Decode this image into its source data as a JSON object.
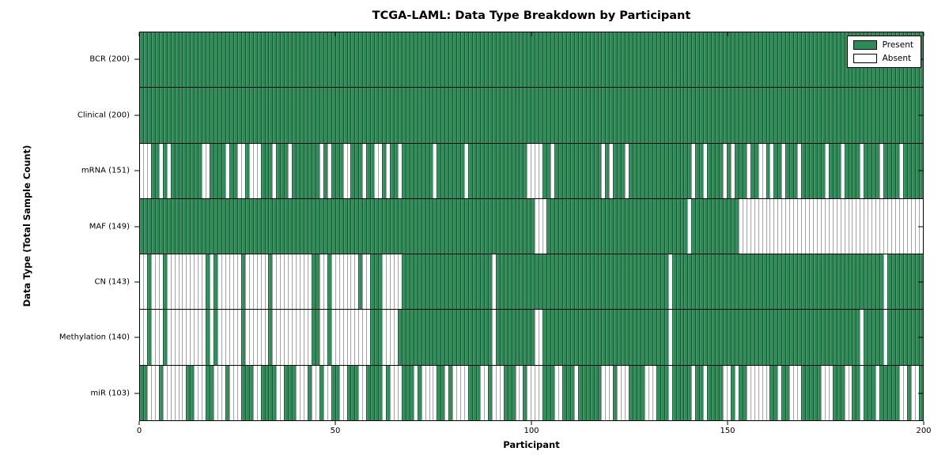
{
  "title": "TCGA-LAML: Data Type Breakdown by Participant",
  "axes": {
    "xlabel": "Participant",
    "ylabel": "Data Type (Total Sample Count)"
  },
  "legend": {
    "position": "upper right",
    "items": [
      {
        "label": "Present",
        "color": "#2e8b57"
      },
      {
        "label": "Absent",
        "color": "#ffffff"
      }
    ]
  },
  "chart_data": {
    "type": "heatmap",
    "title": "TCGA-LAML: Data Type Breakdown by Participant",
    "xlabel": "Participant",
    "ylabel": "Data Type (Total Sample Count)",
    "x_range": [
      0,
      200
    ],
    "x_ticks": [
      0,
      50,
      100,
      150,
      200
    ],
    "n_participants": 200,
    "grid": false,
    "colors": {
      "present": "#2e8b57",
      "absent": "#ffffff"
    },
    "rows": [
      {
        "label": "BCR (200)",
        "data_type": "BCR",
        "present_count": 200,
        "absent_ranges": []
      },
      {
        "label": "Clinical (200)",
        "data_type": "Clinical",
        "present_count": 200,
        "absent_ranges": []
      },
      {
        "label": "mRNA (151)",
        "data_type": "mRNA",
        "present_count": 151,
        "absent_ranges": [
          [
            0,
            2
          ],
          [
            5,
            5
          ],
          [
            7,
            7
          ],
          [
            16,
            17
          ],
          [
            22,
            22
          ],
          [
            25,
            26
          ],
          [
            28,
            30
          ],
          [
            34,
            34
          ],
          [
            38,
            38
          ],
          [
            46,
            46
          ],
          [
            48,
            48
          ],
          [
            52,
            53
          ],
          [
            57,
            57
          ],
          [
            60,
            61
          ],
          [
            63,
            63
          ],
          [
            66,
            66
          ],
          [
            75,
            75
          ],
          [
            83,
            83
          ],
          [
            99,
            102
          ],
          [
            105,
            105
          ],
          [
            118,
            118
          ],
          [
            120,
            120
          ],
          [
            124,
            124
          ],
          [
            141,
            141
          ],
          [
            144,
            144
          ],
          [
            149,
            149
          ],
          [
            151,
            151
          ],
          [
            155,
            155
          ],
          [
            158,
            159
          ],
          [
            161,
            161
          ],
          [
            164,
            164
          ],
          [
            168,
            168
          ],
          [
            175,
            175
          ],
          [
            179,
            179
          ],
          [
            184,
            184
          ],
          [
            189,
            189
          ],
          [
            194,
            194
          ]
        ]
      },
      {
        "label": "MAF (149)",
        "data_type": "MAF",
        "present_count": 149,
        "absent_ranges": [
          [
            101,
            103
          ],
          [
            140,
            140
          ],
          [
            153,
            199
          ]
        ]
      },
      {
        "label": "CN (143)",
        "data_type": "CN",
        "present_count": 143,
        "absent_ranges": [
          [
            0,
            1
          ],
          [
            3,
            5
          ],
          [
            7,
            16
          ],
          [
            18,
            18
          ],
          [
            20,
            25
          ],
          [
            27,
            32
          ],
          [
            34,
            43
          ],
          [
            46,
            47
          ],
          [
            49,
            55
          ],
          [
            57,
            58
          ],
          [
            62,
            66
          ],
          [
            90,
            90
          ],
          [
            135,
            135
          ],
          [
            190,
            190
          ]
        ]
      },
      {
        "label": "Methylation (140)",
        "data_type": "Methylation",
        "present_count": 140,
        "absent_ranges": [
          [
            0,
            1
          ],
          [
            3,
            5
          ],
          [
            7,
            16
          ],
          [
            18,
            18
          ],
          [
            20,
            25
          ],
          [
            27,
            32
          ],
          [
            34,
            43
          ],
          [
            46,
            47
          ],
          [
            49,
            58
          ],
          [
            62,
            65
          ],
          [
            90,
            90
          ],
          [
            101,
            102
          ],
          [
            135,
            135
          ],
          [
            184,
            184
          ],
          [
            190,
            190
          ]
        ]
      },
      {
        "label": "miR (103)",
        "data_type": "miR",
        "present_count": 103,
        "absent_ranges": [
          [
            2,
            4
          ],
          [
            6,
            11
          ],
          [
            14,
            16
          ],
          [
            19,
            21
          ],
          [
            23,
            25
          ],
          [
            29,
            30
          ],
          [
            35,
            36
          ],
          [
            40,
            42
          ],
          [
            44,
            45
          ],
          [
            47,
            48
          ],
          [
            51,
            52
          ],
          [
            56,
            57
          ],
          [
            62,
            62
          ],
          [
            64,
            66
          ],
          [
            70,
            70
          ],
          [
            72,
            75
          ],
          [
            78,
            78
          ],
          [
            80,
            83
          ],
          [
            87,
            88
          ],
          [
            90,
            92
          ],
          [
            96,
            97
          ],
          [
            99,
            102
          ],
          [
            106,
            107
          ],
          [
            111,
            111
          ],
          [
            118,
            120
          ],
          [
            122,
            124
          ],
          [
            129,
            131
          ],
          [
            135,
            135
          ],
          [
            141,
            141
          ],
          [
            144,
            144
          ],
          [
            149,
            150
          ],
          [
            152,
            152
          ],
          [
            155,
            160
          ],
          [
            163,
            163
          ],
          [
            166,
            168
          ],
          [
            174,
            176
          ],
          [
            180,
            181
          ],
          [
            184,
            184
          ],
          [
            188,
            188
          ],
          [
            194,
            195
          ],
          [
            197,
            198
          ]
        ]
      }
    ]
  }
}
